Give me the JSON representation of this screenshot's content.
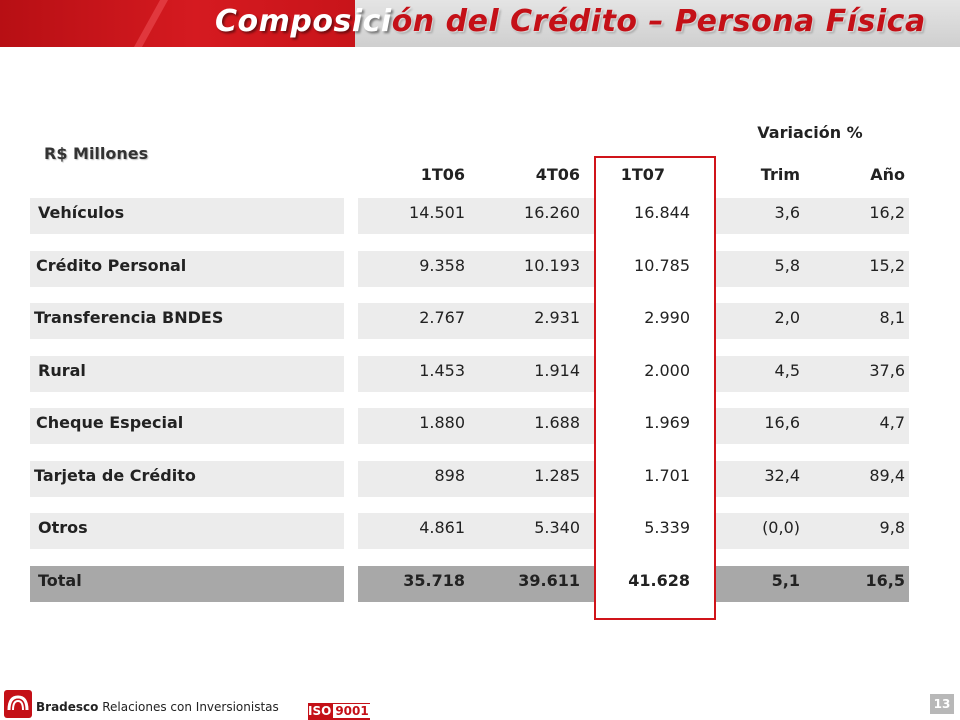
{
  "header": {
    "title_part1": "Composici",
    "title_part2": "ón del Crédito – Persona Física"
  },
  "table": {
    "units_label": "R$ Millones",
    "group_header": "Variación %",
    "columns": [
      "1T06",
      "4T06",
      "1T07",
      "Trim",
      "Año"
    ],
    "rows": [
      {
        "label": "Vehículos",
        "values": [
          "14.501",
          "16.260",
          "16.844",
          "3,6",
          "16,2"
        ]
      },
      {
        "label": "Crédito Personal",
        "values": [
          "9.358",
          "10.193",
          "10.785",
          "5,8",
          "15,2"
        ]
      },
      {
        "label": "Transferencia BNDES",
        "values": [
          "2.767",
          "2.931",
          "2.990",
          "2,0",
          "8,1"
        ]
      },
      {
        "label": "Rural",
        "values": [
          "1.453",
          "1.914",
          "2.000",
          "4,5",
          "37,6"
        ]
      },
      {
        "label": "Cheque Especial",
        "values": [
          "1.880",
          "1.688",
          "1.969",
          "16,6",
          "4,7"
        ]
      },
      {
        "label": "Tarjeta de Crédito",
        "values": [
          "898",
          "1.285",
          "1.701",
          "32,4",
          "89,4"
        ]
      },
      {
        "label": "Otros",
        "values": [
          "4.861",
          "5.340",
          "5.339",
          "(0,0)",
          "9,8"
        ]
      }
    ],
    "total": {
      "label": "Total",
      "values": [
        "35.718",
        "39.611",
        "41.628",
        "5,1",
        "16,5"
      ]
    }
  },
  "footer": {
    "brand": "Bradesco",
    "subtitle": "Relaciones con Inversionistas",
    "iso_prefix": "ISO",
    "iso_number": "9001",
    "page_number": "13"
  },
  "colors": {
    "accent": "#c41017",
    "row_bg": "#ececec",
    "total_bg": "#a8a8a8"
  }
}
